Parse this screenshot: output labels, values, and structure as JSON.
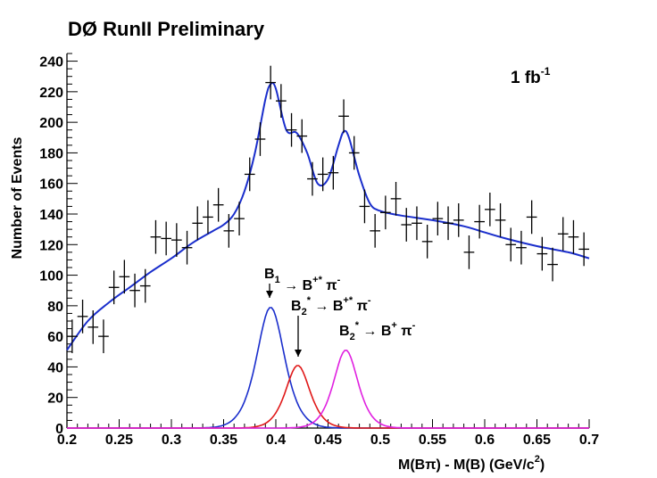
{
  "chart_data": {
    "type": "scatter",
    "title": "DØ RunII Preliminary",
    "annotation": "1 fb",
    "annotation_sup": "-1",
    "ylabel": "Number of Events",
    "xlabel": "M(Bπ) - M(B)   (GeV/c",
    "xlabel_sup": "2",
    "xlabel_close": ")",
    "xlim": [
      0.2,
      0.7
    ],
    "ylim": [
      0,
      245
    ],
    "xticks": [
      0.2,
      0.25,
      0.3,
      0.35,
      0.4,
      0.45,
      0.5,
      0.55,
      0.6,
      0.65,
      0.7
    ],
    "xtick_labels": [
      "0.2",
      "0.25",
      "0.3",
      "0.35",
      "0.4",
      "0.45",
      "0.5",
      "0.55",
      "0.6",
      "0.65",
      "0.7"
    ],
    "yticks": [
      0,
      20,
      40,
      60,
      80,
      100,
      120,
      140,
      160,
      180,
      200,
      220,
      240
    ],
    "ytick_labels": [
      "0",
      "20",
      "40",
      "60",
      "80",
      "100",
      "120",
      "140",
      "160",
      "180",
      "200",
      "220",
      "240"
    ],
    "grid": false,
    "data_points": {
      "name": "Data",
      "x": [
        0.205,
        0.215,
        0.225,
        0.235,
        0.245,
        0.255,
        0.265,
        0.275,
        0.285,
        0.295,
        0.305,
        0.315,
        0.325,
        0.335,
        0.345,
        0.355,
        0.365,
        0.375,
        0.385,
        0.395,
        0.405,
        0.415,
        0.425,
        0.435,
        0.445,
        0.455,
        0.465,
        0.475,
        0.485,
        0.495,
        0.505,
        0.515,
        0.525,
        0.535,
        0.545,
        0.555,
        0.565,
        0.575,
        0.585,
        0.595,
        0.605,
        0.615,
        0.625,
        0.635,
        0.645,
        0.655,
        0.665,
        0.675,
        0.685,
        0.695
      ],
      "y": [
        60,
        73,
        66,
        60,
        92,
        99,
        90,
        93,
        125,
        124,
        123,
        118,
        134,
        138,
        146,
        129,
        137,
        166,
        189,
        226,
        214,
        195,
        191,
        163,
        166,
        167,
        204,
        180,
        145,
        129,
        141,
        150,
        133,
        134,
        122,
        137,
        134,
        136,
        115,
        135,
        143,
        136,
        120,
        118,
        138,
        114,
        107,
        127,
        125,
        117
      ],
      "yerr": 11
    },
    "series": [
      {
        "name": "",
        "color": "#1a2ecc",
        "points": [
          [
            0.2,
            51
          ],
          [
            0.22,
            70
          ],
          [
            0.24,
            82
          ],
          [
            0.26,
            92
          ],
          [
            0.28,
            102
          ],
          [
            0.3,
            111
          ],
          [
            0.32,
            121
          ],
          [
            0.34,
            129
          ],
          [
            0.35,
            133
          ],
          [
            0.36,
            140
          ],
          [
            0.37,
            155
          ],
          [
            0.38,
            180
          ],
          [
            0.39,
            215
          ],
          [
            0.395,
            225
          ],
          [
            0.4,
            222
          ],
          [
            0.41,
            195
          ],
          [
            0.42,
            193
          ],
          [
            0.43,
            180
          ],
          [
            0.44,
            160
          ],
          [
            0.45,
            163
          ],
          [
            0.46,
            185
          ],
          [
            0.465,
            194
          ],
          [
            0.47,
            190
          ],
          [
            0.48,
            165
          ],
          [
            0.49,
            147
          ],
          [
            0.5,
            142
          ],
          [
            0.52,
            139
          ],
          [
            0.55,
            136
          ],
          [
            0.58,
            132
          ],
          [
            0.6,
            128
          ],
          [
            0.62,
            124
          ],
          [
            0.65,
            119
          ],
          [
            0.68,
            115
          ],
          [
            0.7,
            111
          ]
        ]
      },
      {
        "name": "B1 → B+* π-",
        "color": "#1a2ecc",
        "peak": 0.395,
        "height": 79,
        "width": 0.016
      },
      {
        "name": "B2* → B+* π-",
        "color": "#e01818",
        "peak": 0.421,
        "height": 41,
        "width": 0.014
      },
      {
        "name": "B2* → B+ π-",
        "color": "#e020e0",
        "peak": 0.467,
        "height": 51,
        "width": 0.014
      }
    ],
    "labels": [
      {
        "base": "B",
        "sub": "1",
        "sup": "",
        "arrow": "→",
        "rest": "B",
        "rest_sup": "+*",
        "tail": "π",
        "tail_sup": "-"
      },
      {
        "base": "B",
        "sub": "2",
        "sup": "*",
        "arrow": "→",
        "rest": "B",
        "rest_sup": "+*",
        "tail": "π",
        "tail_sup": "-"
      },
      {
        "base": "B",
        "sub": "2",
        "sup": "*",
        "arrow": "→",
        "rest": "B",
        "rest_sup": "+",
        "tail": "π",
        "tail_sup": "-"
      }
    ]
  }
}
